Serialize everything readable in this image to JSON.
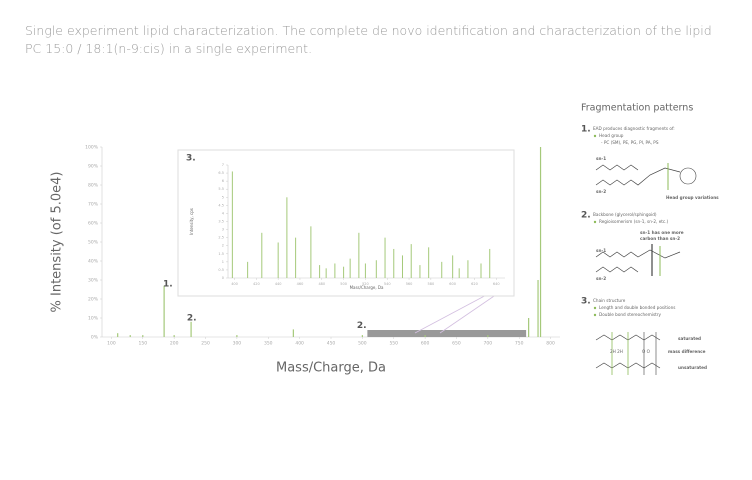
{
  "caption": "Single experiment lipid characterization. The complete de novo identification and characterization of the lipid PC 15:0 / 18:1(n-9:cis) in a single experiment.",
  "chart_data": [
    {
      "type": "bar",
      "xlabel": "Mass/Charge, Da",
      "ylabel": "% Intensity (of 5.0e4)",
      "color": "#a5c97a",
      "x": [
        110,
        130,
        150,
        184,
        200,
        227,
        300,
        390,
        500,
        600,
        700,
        765,
        780,
        784
      ],
      "values": [
        2,
        1,
        1,
        27,
        1,
        8,
        1,
        4,
        1,
        1,
        1,
        10,
        30,
        100
      ],
      "xlim": [
        85,
        815
      ],
      "ylim": [
        0,
        100
      ],
      "xticks": [
        100,
        150,
        200,
        250,
        300,
        350,
        400,
        450,
        500,
        550,
        600,
        650,
        700,
        750,
        800
      ],
      "yticks": [
        {
          "value": 0,
          "label": "0%"
        },
        {
          "value": 10,
          "label": "10%"
        },
        {
          "value": 20,
          "label": "20%"
        },
        {
          "value": 30,
          "label": "30%"
        },
        {
          "value": 40,
          "label": "40%"
        },
        {
          "value": 50,
          "label": "50%"
        },
        {
          "value": 60,
          "label": "60%"
        },
        {
          "value": 70,
          "label": "70%"
        },
        {
          "value": 80,
          "label": "80%"
        },
        {
          "value": 90,
          "label": "90%"
        },
        {
          "value": 100,
          "label": "100%"
        }
      ],
      "zoom_range": [
        508,
        761
      ],
      "annotations": [
        {
          "text": "1.",
          "x": 190,
          "y": 28
        },
        {
          "text": "2.",
          "x": 228,
          "y": 10
        },
        {
          "text": "2.",
          "x": 499,
          "y": 6
        }
      ]
    },
    {
      "type": "bar",
      "title": "3.",
      "xlabel": "Mass/Charge, Da",
      "ylabel": "Intensity, cps",
      "color": "#a5c97a",
      "x": [
        398,
        412,
        425,
        440,
        448,
        456,
        470,
        478,
        484,
        492,
        500,
        506,
        514,
        520,
        530,
        538,
        546,
        554,
        562,
        570,
        578,
        590,
        600,
        606,
        614,
        626,
        634
      ],
      "values": [
        6.6,
        1.0,
        2.8,
        2.2,
        5.0,
        2.5,
        3.2,
        0.8,
        0.6,
        0.9,
        0.7,
        1.2,
        2.8,
        0.9,
        1.1,
        2.5,
        1.8,
        1.4,
        2.1,
        0.8,
        1.9,
        1.0,
        1.4,
        0.6,
        1.1,
        0.9,
        1.8
      ],
      "xlim": [
        394,
        648
      ],
      "ylim": [
        0,
        7
      ],
      "xticks": [
        400,
        420,
        440,
        460,
        480,
        500,
        520,
        540,
        560,
        580,
        600,
        620,
        640
      ],
      "yticks": [
        0,
        0.5,
        1,
        1.5,
        2,
        2.5,
        3,
        3.5,
        4,
        4.5,
        5,
        5.5,
        6,
        6.5,
        7
      ]
    }
  ],
  "panel": {
    "title": "Fragmentation patterns",
    "sections": [
      {
        "number": "1.",
        "heading": "EAD produces diagnostic fragments of:",
        "bullet": "Head group",
        "sub": "- PC (SM), PE, PG, PI, PA, PS",
        "labels": [
          "sn-1",
          "sn-2",
          "Head group variations"
        ]
      },
      {
        "number": "2.",
        "heading": "Backbone (glycerol/sphingoid)",
        "bullet": "Regioisomerism (sn-1, sn-2, etc.)",
        "labels": [
          "sn-1 has one more",
          "carbon than sn-2",
          "sn-1",
          "sn-2"
        ]
      },
      {
        "number": "3.",
        "heading": "Chain structure",
        "bullet": "Length and double bonded positions",
        "sub": "Double bond stereochemistry",
        "labels": [
          "saturated",
          "mass difference",
          "unsaturated",
          "2H 2H",
          "O   O"
        ]
      }
    ]
  }
}
